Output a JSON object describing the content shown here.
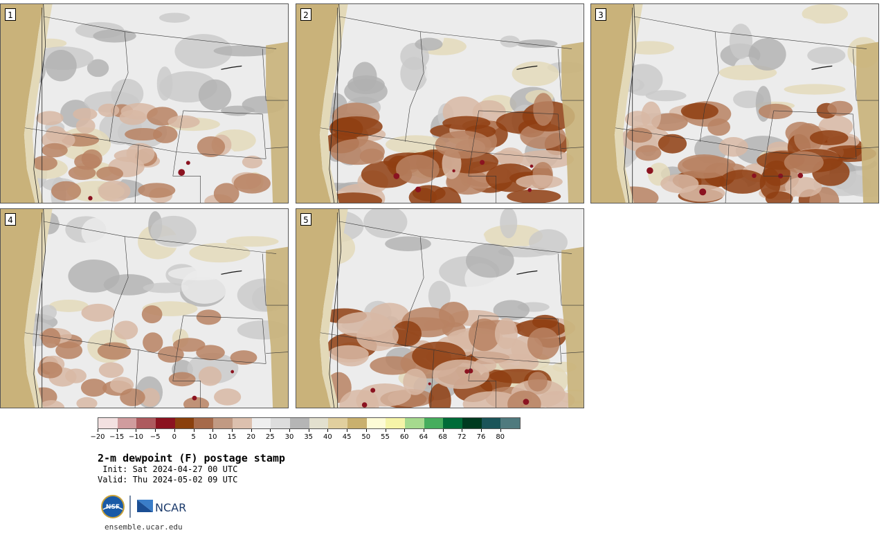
{
  "panels": [
    {
      "label": "1",
      "intensity": 0.45
    },
    {
      "label": "2",
      "intensity": 0.95
    },
    {
      "label": "3",
      "intensity": 0.85
    },
    {
      "label": "4",
      "intensity": 0.35
    },
    {
      "label": "5",
      "intensity": 1.0
    }
  ],
  "colorbar": {
    "colors": [
      "#f3e1e1",
      "#d09c9e",
      "#ad5a5e",
      "#8b1320",
      "#8a400d",
      "#a66a4a",
      "#c19a83",
      "#dcc0ae",
      "#eeeeee",
      "#dddddd",
      "#b5b5b5",
      "#e3e0cf",
      "#e1cf9e",
      "#c9b06e",
      "#fdfbd6",
      "#f5f4a8",
      "#a6da8e",
      "#46ad5d",
      "#006b38",
      "#003a20",
      "#1b5459",
      "#4f7a7e"
    ],
    "ticks": [
      "−20",
      "−15",
      "−10",
      "−5",
      "0",
      "5",
      "10",
      "15",
      "20",
      "25",
      "30",
      "35",
      "40",
      "45",
      "50",
      "55",
      "60",
      "64",
      "68",
      "72",
      "76",
      "80"
    ]
  },
  "title": "2-m dewpoint (F) postage stamp",
  "init": " Init: Sat 2024-04-27 00 UTC",
  "valid": "Valid: Thu 2024-05-02 09 UTC",
  "logos": {
    "nsf": "NSF",
    "ncar": "NCAR"
  },
  "url": "ensemble.ucar.edu",
  "map_colors": {
    "ocean_tan": "#c9b27a",
    "light_tan": "#e3d9b8",
    "gray_light": "#ececec",
    "gray_mid": "#c9c9c9",
    "gray_dark": "#b0b0b0",
    "brown_light": "#d8b9a5",
    "brown_mid": "#b88363",
    "brown_dark": "#8f3e12",
    "red_spot": "#8b1320",
    "pale_yellow": "#fdfbd6"
  }
}
